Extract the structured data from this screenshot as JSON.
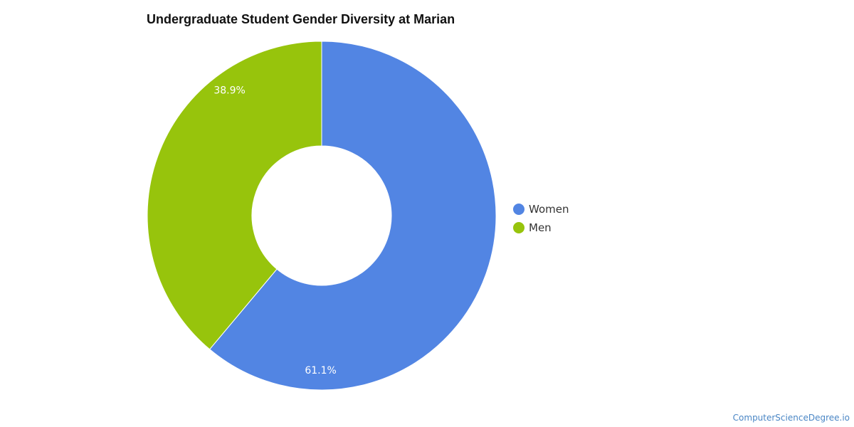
{
  "chart_data": {
    "type": "pie",
    "variant": "donut",
    "title": "Undergraduate Student Gender Diversity at Marian",
    "categories": [
      "Women",
      "Men"
    ],
    "values": [
      61.1,
      38.9
    ],
    "value_labels": [
      "61.1%",
      "38.9%"
    ],
    "colors": [
      "#5285e3",
      "#97c40c"
    ],
    "legend_position": "right"
  },
  "source_text": "ComputerScienceDegree.io"
}
